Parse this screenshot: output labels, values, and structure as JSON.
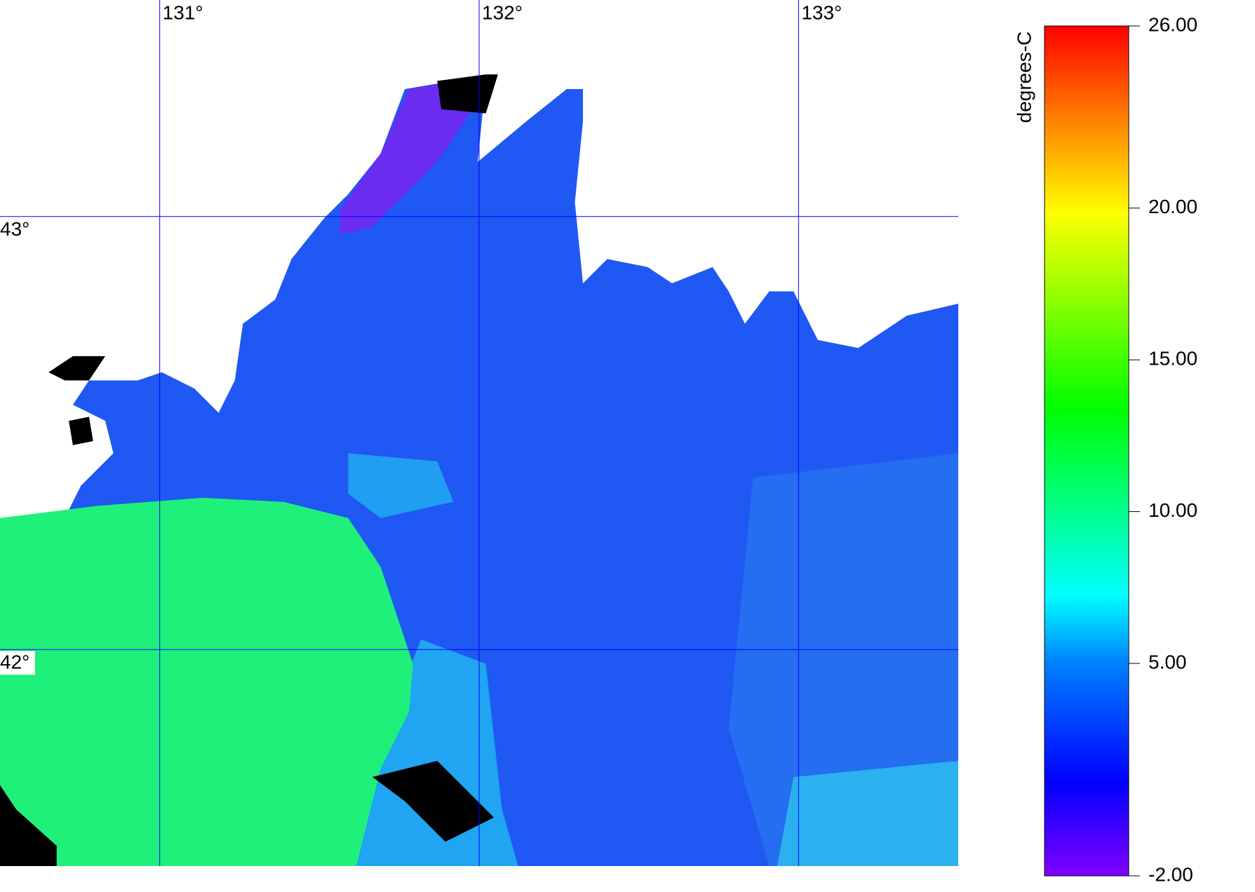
{
  "map": {
    "xlim": [
      130.5,
      133.5
    ],
    "ylim": [
      41.5,
      43.5
    ],
    "lon_ticks": [
      {
        "value": 131,
        "label": "131°"
      },
      {
        "value": 132,
        "label": "132°"
      },
      {
        "value": 133,
        "label": "133°"
      }
    ],
    "lat_ticks": [
      {
        "value": 43,
        "label": "43°"
      },
      {
        "value": 42,
        "label": "42°"
      }
    ],
    "grid_color": "#0000ff"
  },
  "colorbar": {
    "title": "degrees-C",
    "lim": [
      -2,
      26
    ],
    "ticks": [
      {
        "value": -2,
        "label": "-2.00"
      },
      {
        "value": 5,
        "label": "5.00"
      },
      {
        "value": 10,
        "label": "10.00"
      },
      {
        "value": 15,
        "label": "15.00"
      },
      {
        "value": 20,
        "label": "20.00"
      },
      {
        "value": 26,
        "label": "26.00"
      }
    ]
  }
}
